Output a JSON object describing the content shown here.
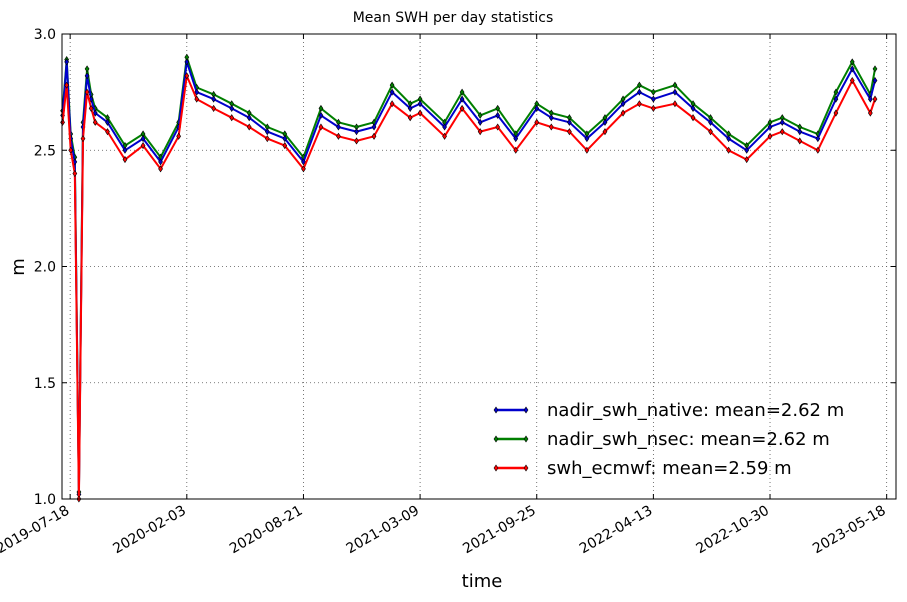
{
  "chart_data": {
    "type": "line",
    "title": "Mean SWH per day statistics",
    "xlabel": "time",
    "ylabel": "m",
    "ylim": [
      1.0,
      3.0
    ],
    "yticks": [
      "1.0",
      "1.5",
      "2.0",
      "2.5",
      "3.0"
    ],
    "xlim": [
      "2019-07-04",
      "2023-06-03"
    ],
    "xticks": [
      "2019-07-18",
      "2020-02-03",
      "2020-08-21",
      "2021-03-09",
      "2021-09-25",
      "2022-04-13",
      "2022-10-30",
      "2023-05-18"
    ],
    "grid": true,
    "legend_position": "lower-right",
    "series": [
      {
        "name": "nadir_swh_native: mean=2.62 m",
        "color": "#0000cc",
        "x": [
          "2019-07-05",
          "2019-07-12",
          "2019-07-19",
          "2019-07-26",
          "2019-08-02",
          "2019-08-09",
          "2019-08-16",
          "2019-08-23",
          "2019-08-30",
          "2019-09-20",
          "2019-10-20",
          "2019-11-20",
          "2019-12-20",
          "2020-01-20",
          "2020-02-03",
          "2020-02-20",
          "2020-03-20",
          "2020-04-20",
          "2020-05-20",
          "2020-06-20",
          "2020-07-20",
          "2020-08-21",
          "2020-09-20",
          "2020-10-20",
          "2020-11-20",
          "2020-12-20",
          "2021-01-20",
          "2021-02-20",
          "2021-03-09",
          "2021-04-20",
          "2021-05-20",
          "2021-06-20",
          "2021-07-20",
          "2021-08-20",
          "2021-09-25",
          "2021-10-20",
          "2021-11-20",
          "2021-12-20",
          "2022-01-20",
          "2022-02-20",
          "2022-03-20",
          "2022-04-13",
          "2022-05-20",
          "2022-06-20",
          "2022-07-20",
          "2022-08-20",
          "2022-09-20",
          "2022-10-30",
          "2022-11-20",
          "2022-12-20",
          "2023-01-20",
          "2023-02-20",
          "2023-03-20",
          "2023-04-20",
          "2023-04-28"
        ],
        "values": [
          2.65,
          2.88,
          2.55,
          2.45,
          1.02,
          2.6,
          2.82,
          2.72,
          2.66,
          2.62,
          2.5,
          2.55,
          2.45,
          2.6,
          2.88,
          2.75,
          2.72,
          2.68,
          2.64,
          2.58,
          2.55,
          2.45,
          2.65,
          2.6,
          2.58,
          2.6,
          2.75,
          2.68,
          2.7,
          2.6,
          2.72,
          2.62,
          2.65,
          2.55,
          2.68,
          2.64,
          2.62,
          2.55,
          2.62,
          2.7,
          2.75,
          2.72,
          2.75,
          2.68,
          2.62,
          2.55,
          2.5,
          2.6,
          2.62,
          2.58,
          2.55,
          2.72,
          2.85,
          2.72,
          2.8
        ]
      },
      {
        "name": "nadir_swh_nsec: mean=2.62 m",
        "color": "#007f00",
        "x": [
          "2019-07-05",
          "2019-07-12",
          "2019-07-19",
          "2019-07-26",
          "2019-08-02",
          "2019-08-09",
          "2019-08-16",
          "2019-08-23",
          "2019-08-30",
          "2019-09-20",
          "2019-10-20",
          "2019-11-20",
          "2019-12-20",
          "2020-01-20",
          "2020-02-03",
          "2020-02-20",
          "2020-03-20",
          "2020-04-20",
          "2020-05-20",
          "2020-06-20",
          "2020-07-20",
          "2020-08-21",
          "2020-09-20",
          "2020-10-20",
          "2020-11-20",
          "2020-12-20",
          "2021-01-20",
          "2021-02-20",
          "2021-03-09",
          "2021-04-20",
          "2021-05-20",
          "2021-06-20",
          "2021-07-20",
          "2021-08-20",
          "2021-09-25",
          "2021-10-20",
          "2021-11-20",
          "2021-12-20",
          "2022-01-20",
          "2022-02-20",
          "2022-03-20",
          "2022-04-13",
          "2022-05-20",
          "2022-06-20",
          "2022-07-20",
          "2022-08-20",
          "2022-09-20",
          "2022-10-30",
          "2022-11-20",
          "2022-12-20",
          "2023-01-20",
          "2023-02-20",
          "2023-03-20",
          "2023-04-20",
          "2023-04-28"
        ],
        "values": [
          2.67,
          2.89,
          2.57,
          2.47,
          1.03,
          2.62,
          2.85,
          2.74,
          2.68,
          2.64,
          2.52,
          2.57,
          2.47,
          2.62,
          2.9,
          2.77,
          2.74,
          2.7,
          2.66,
          2.6,
          2.57,
          2.47,
          2.68,
          2.62,
          2.6,
          2.62,
          2.78,
          2.7,
          2.72,
          2.62,
          2.75,
          2.65,
          2.68,
          2.57,
          2.7,
          2.66,
          2.64,
          2.57,
          2.64,
          2.72,
          2.78,
          2.75,
          2.78,
          2.7,
          2.64,
          2.57,
          2.52,
          2.62,
          2.64,
          2.6,
          2.57,
          2.75,
          2.88,
          2.74,
          2.85
        ]
      },
      {
        "name": "swh_ecmwf: mean=2.59 m",
        "color": "#ff0000",
        "x": [
          "2019-07-05",
          "2019-07-12",
          "2019-07-19",
          "2019-07-26",
          "2019-08-02",
          "2019-08-09",
          "2019-08-16",
          "2019-08-23",
          "2019-08-30",
          "2019-09-20",
          "2019-10-20",
          "2019-11-20",
          "2019-12-20",
          "2020-01-20",
          "2020-02-03",
          "2020-02-20",
          "2020-03-20",
          "2020-04-20",
          "2020-05-20",
          "2020-06-20",
          "2020-07-20",
          "2020-08-21",
          "2020-09-20",
          "2020-10-20",
          "2020-11-20",
          "2020-12-20",
          "2021-01-20",
          "2021-02-20",
          "2021-03-09",
          "2021-04-20",
          "2021-05-20",
          "2021-06-20",
          "2021-07-20",
          "2021-08-20",
          "2021-09-25",
          "2021-10-20",
          "2021-11-20",
          "2021-12-20",
          "2022-01-20",
          "2022-02-20",
          "2022-03-20",
          "2022-04-13",
          "2022-05-20",
          "2022-06-20",
          "2022-07-20",
          "2022-08-20",
          "2022-09-20",
          "2022-10-30",
          "2022-11-20",
          "2022-12-20",
          "2023-01-20",
          "2023-02-20",
          "2023-03-20",
          "2023-04-20",
          "2023-04-28"
        ],
        "values": [
          2.62,
          2.78,
          2.5,
          2.4,
          1.0,
          2.55,
          2.75,
          2.68,
          2.62,
          2.58,
          2.46,
          2.52,
          2.42,
          2.56,
          2.82,
          2.72,
          2.68,
          2.64,
          2.6,
          2.55,
          2.52,
          2.42,
          2.6,
          2.56,
          2.54,
          2.56,
          2.7,
          2.64,
          2.66,
          2.56,
          2.68,
          2.58,
          2.6,
          2.5,
          2.62,
          2.6,
          2.58,
          2.5,
          2.58,
          2.66,
          2.7,
          2.68,
          2.7,
          2.64,
          2.58,
          2.5,
          2.46,
          2.56,
          2.58,
          2.54,
          2.5,
          2.66,
          2.8,
          2.66,
          2.72
        ]
      }
    ]
  }
}
